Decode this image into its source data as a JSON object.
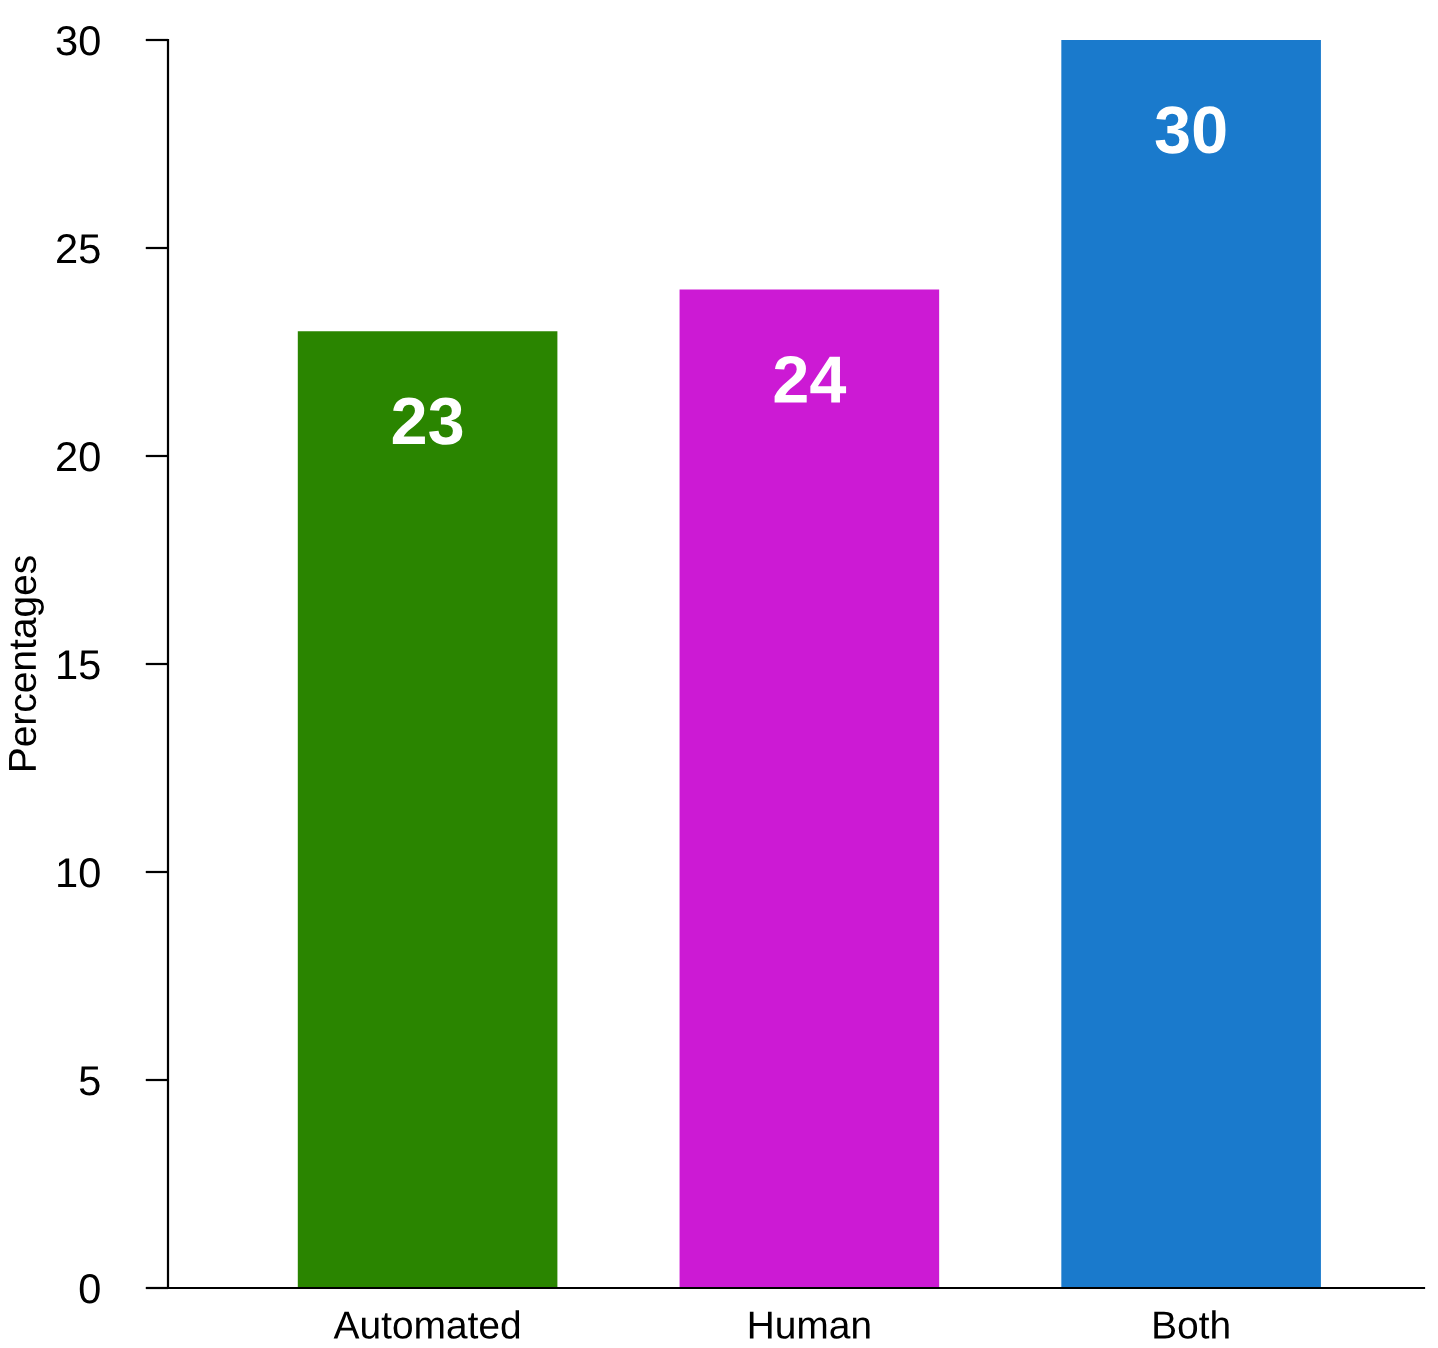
{
  "chart_data": {
    "type": "bar",
    "ylabel": "Percentages",
    "categories": [
      "Automated",
      "Human",
      "Both"
    ],
    "values": [
      23,
      24,
      30
    ],
    "colors": [
      "#2a8500",
      "#cc1ad4",
      "#1a7acc"
    ],
    "ylim": [
      0,
      30
    ],
    "yticks": [
      0,
      5,
      10,
      15,
      20,
      25,
      30
    ],
    "data_labels": true,
    "grid": false,
    "legend": false
  }
}
